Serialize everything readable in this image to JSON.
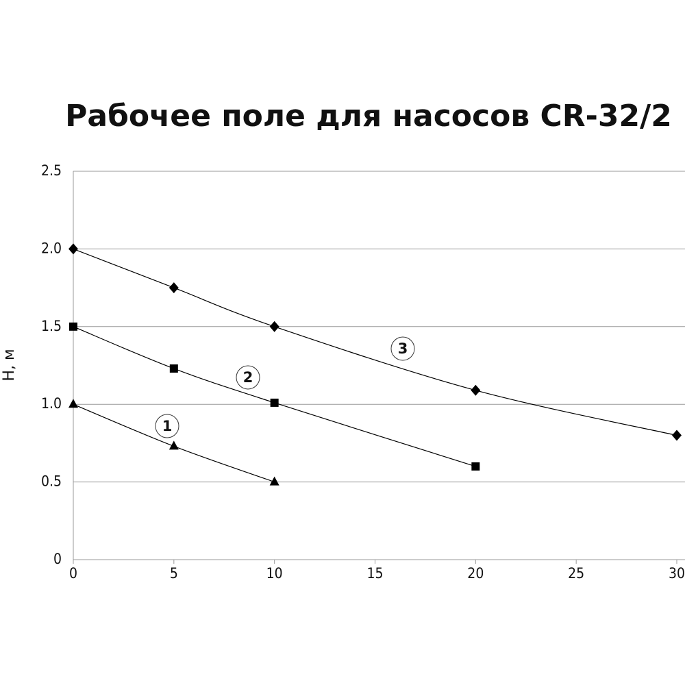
{
  "chart_data": {
    "type": "line",
    "title": "Рабочее поле для насосов CR-32/2",
    "y_label": "H, м",
    "xlim": [
      0,
      30
    ],
    "xticks": [
      0,
      5,
      10,
      15,
      20,
      25,
      30
    ],
    "ylim": [
      0,
      2.5
    ],
    "yticks": [
      0,
      0.5,
      {
        "value": 1,
        "label": "1.0"
      },
      {
        "value": 1.5,
        "label": "1.5"
      },
      {
        "value": 2,
        "label": "2.0"
      },
      2.5
    ],
    "grid": true,
    "series": [
      {
        "name": "1",
        "marker": "triangle",
        "color": "#000000",
        "x": [
          0,
          5,
          10
        ],
        "values": [
          1.0,
          0.73,
          0.5
        ]
      },
      {
        "name": "2",
        "marker": "square",
        "color": "#000000",
        "x": [
          0,
          5,
          10,
          20
        ],
        "values": [
          1.5,
          1.23,
          1.01,
          0.6
        ]
      },
      {
        "name": "3",
        "marker": "diamond",
        "color": "#000000",
        "x": [
          0,
          5,
          10,
          20,
          30
        ],
        "values": [
          2.0,
          1.75,
          1.5,
          1.09,
          0.8
        ]
      }
    ]
  }
}
